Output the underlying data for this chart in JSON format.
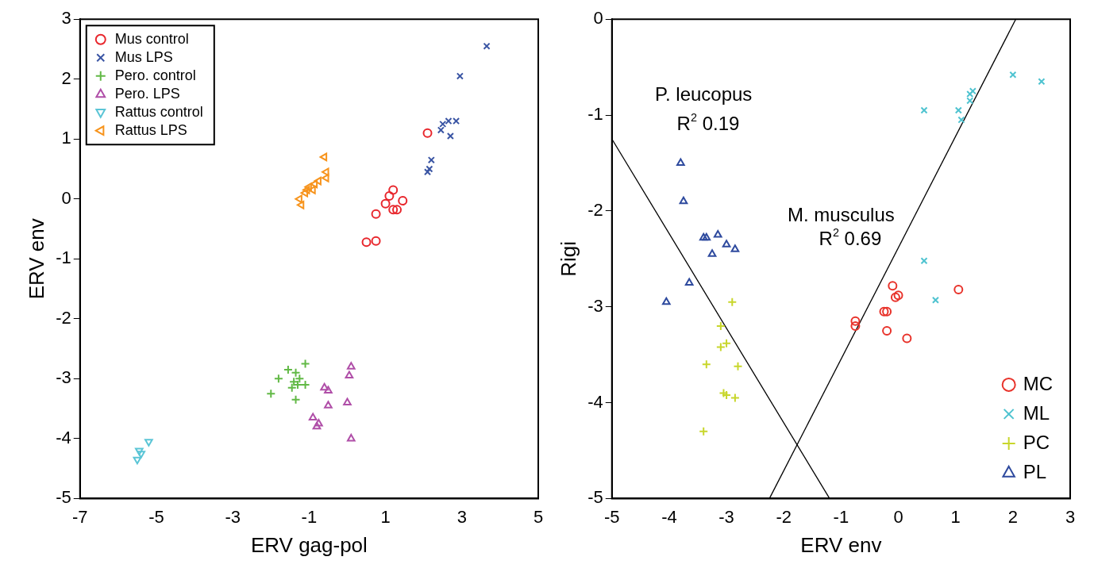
{
  "chart_data": [
    {
      "type": "scatter",
      "xlabel": "ERV gag-pol",
      "ylabel": "ERV env",
      "xlim": [
        -7,
        5
      ],
      "ylim": [
        -5,
        3
      ],
      "xticks": [
        -7,
        -5,
        -3,
        -1,
        1,
        3,
        5
      ],
      "yticks": [
        -5,
        -4,
        -3,
        -2,
        -1,
        0,
        1,
        2,
        3
      ],
      "grid": false,
      "legend": "top left",
      "series": [
        {
          "name": "Mus control",
          "color": "#e8262c",
          "marker": "circle",
          "x": [
            2.1,
            1.2,
            1.1,
            1.0,
            1.45,
            1.2,
            1.3,
            0.75,
            0.5,
            0.75
          ],
          "values": [
            1.1,
            0.15,
            0.05,
            -0.08,
            -0.03,
            -0.18,
            -0.18,
            -0.25,
            -0.72,
            -0.7
          ]
        },
        {
          "name": "Mus LPS",
          "color": "#3a55a4",
          "marker": "x",
          "x": [
            3.65,
            2.95,
            2.1,
            2.15,
            2.2,
            2.45,
            2.5,
            2.65,
            2.85,
            2.7
          ],
          "values": [
            2.55,
            2.05,
            0.45,
            0.5,
            0.65,
            1.15,
            1.25,
            1.3,
            1.3,
            1.05
          ]
        },
        {
          "name": "Pero. control",
          "color": "#62b946",
          "marker": "cross",
          "x": [
            -2.0,
            -1.8,
            -1.55,
            -1.1,
            -1.35,
            -1.4,
            -1.3,
            -1.45,
            -1.1,
            -1.35,
            -1.25
          ],
          "values": [
            -3.25,
            -3.0,
            -2.85,
            -2.75,
            -2.9,
            -3.05,
            -3.1,
            -3.15,
            -3.1,
            -3.35,
            -3.0
          ]
        },
        {
          "name": "Pero. LPS",
          "color": "#b04fa8",
          "marker": "triangle",
          "x": [
            0.1,
            0.05,
            -0.6,
            -0.5,
            -0.5,
            0.0,
            -0.9,
            -0.75,
            -0.8,
            0.1
          ],
          "values": [
            -2.8,
            -2.95,
            -3.15,
            -3.2,
            -3.45,
            -3.4,
            -3.65,
            -3.75,
            -3.8,
            -4.0
          ]
        },
        {
          "name": "Rattus control",
          "color": "#5bc5d6",
          "marker": "triangle-down",
          "x": [
            -5.2,
            -5.45,
            -5.4,
            -5.5
          ],
          "values": [
            -4.05,
            -4.2,
            -4.25,
            -4.35
          ]
        },
        {
          "name": "Rattus LPS",
          "color": "#f7941d",
          "marker": "triangle-left",
          "x": [
            -0.6,
            -0.55,
            -0.55,
            -0.75,
            -0.85,
            -1.0,
            -1.05,
            -1.1,
            -1.25,
            -1.2,
            -0.9
          ],
          "values": [
            0.7,
            0.45,
            0.35,
            0.3,
            0.25,
            0.2,
            0.15,
            0.1,
            0.0,
            -0.1,
            0.15
          ]
        }
      ]
    },
    {
      "type": "scatter",
      "xlabel": "ERV env",
      "ylabel": "Rigi",
      "xlim": [
        -5,
        3
      ],
      "ylim": [
        -5,
        0
      ],
      "xticks": [
        -5,
        -4,
        -3,
        -2,
        -1,
        0,
        1,
        2,
        3
      ],
      "yticks": [
        -5,
        -4,
        -3,
        -2,
        -1,
        0
      ],
      "grid": false,
      "legend": "bottom right",
      "annotations": [
        "P. leucopus",
        "R$^{2}$ 0.19",
        "M. musculus",
        "R$^{2}$ 0.69"
      ],
      "series": [
        {
          "name": "MC",
          "color": "#e8322a",
          "marker": "circle",
          "x": [
            -0.75,
            -0.75,
            -0.25,
            -0.2,
            -0.1,
            -0.05,
            0.0,
            -0.2,
            0.15,
            1.05
          ],
          "values": [
            -3.15,
            -3.2,
            -3.05,
            -3.05,
            -2.78,
            -2.9,
            -2.88,
            -3.25,
            -3.33,
            -2.82
          ]
        },
        {
          "name": "ML",
          "color": "#4fc3d0",
          "marker": "x",
          "x": [
            0.45,
            1.05,
            1.1,
            1.25,
            1.25,
            1.3,
            2.0,
            2.5,
            0.45,
            0.65
          ],
          "values": [
            -0.95,
            -0.95,
            -1.05,
            -0.85,
            -0.78,
            -0.75,
            -0.58,
            -0.65,
            -2.52,
            -2.93
          ]
        },
        {
          "name": "PC",
          "color": "#c8d62b",
          "marker": "cross",
          "x": [
            -2.9,
            -3.1,
            -3.1,
            -3.0,
            -3.35,
            -2.8,
            -3.05,
            -3.0,
            -2.85,
            -3.4
          ],
          "values": [
            -2.95,
            -3.2,
            -3.42,
            -3.38,
            -3.6,
            -3.62,
            -3.9,
            -3.92,
            -3.95,
            -4.3
          ]
        },
        {
          "name": "PL",
          "color": "#2e4a9e",
          "marker": "triangle",
          "x": [
            -3.8,
            -3.75,
            -3.4,
            -3.35,
            -3.15,
            -3.0,
            -2.85,
            -3.25,
            -3.65,
            -4.05
          ],
          "values": [
            -1.5,
            -1.9,
            -2.28,
            -2.28,
            -2.25,
            -2.35,
            -2.4,
            -2.45,
            -2.75,
            -2.95
          ]
        },
        {
          "type": "line",
          "color": "#000000",
          "marker": "none",
          "x": [
            -5,
            -1.2
          ],
          "values": [
            -1.25,
            -5
          ]
        },
        {
          "type": "line",
          "color": "#000000",
          "marker": "none",
          "x": [
            -2.25,
            2.05
          ],
          "values": [
            -5,
            0
          ]
        }
      ]
    }
  ]
}
